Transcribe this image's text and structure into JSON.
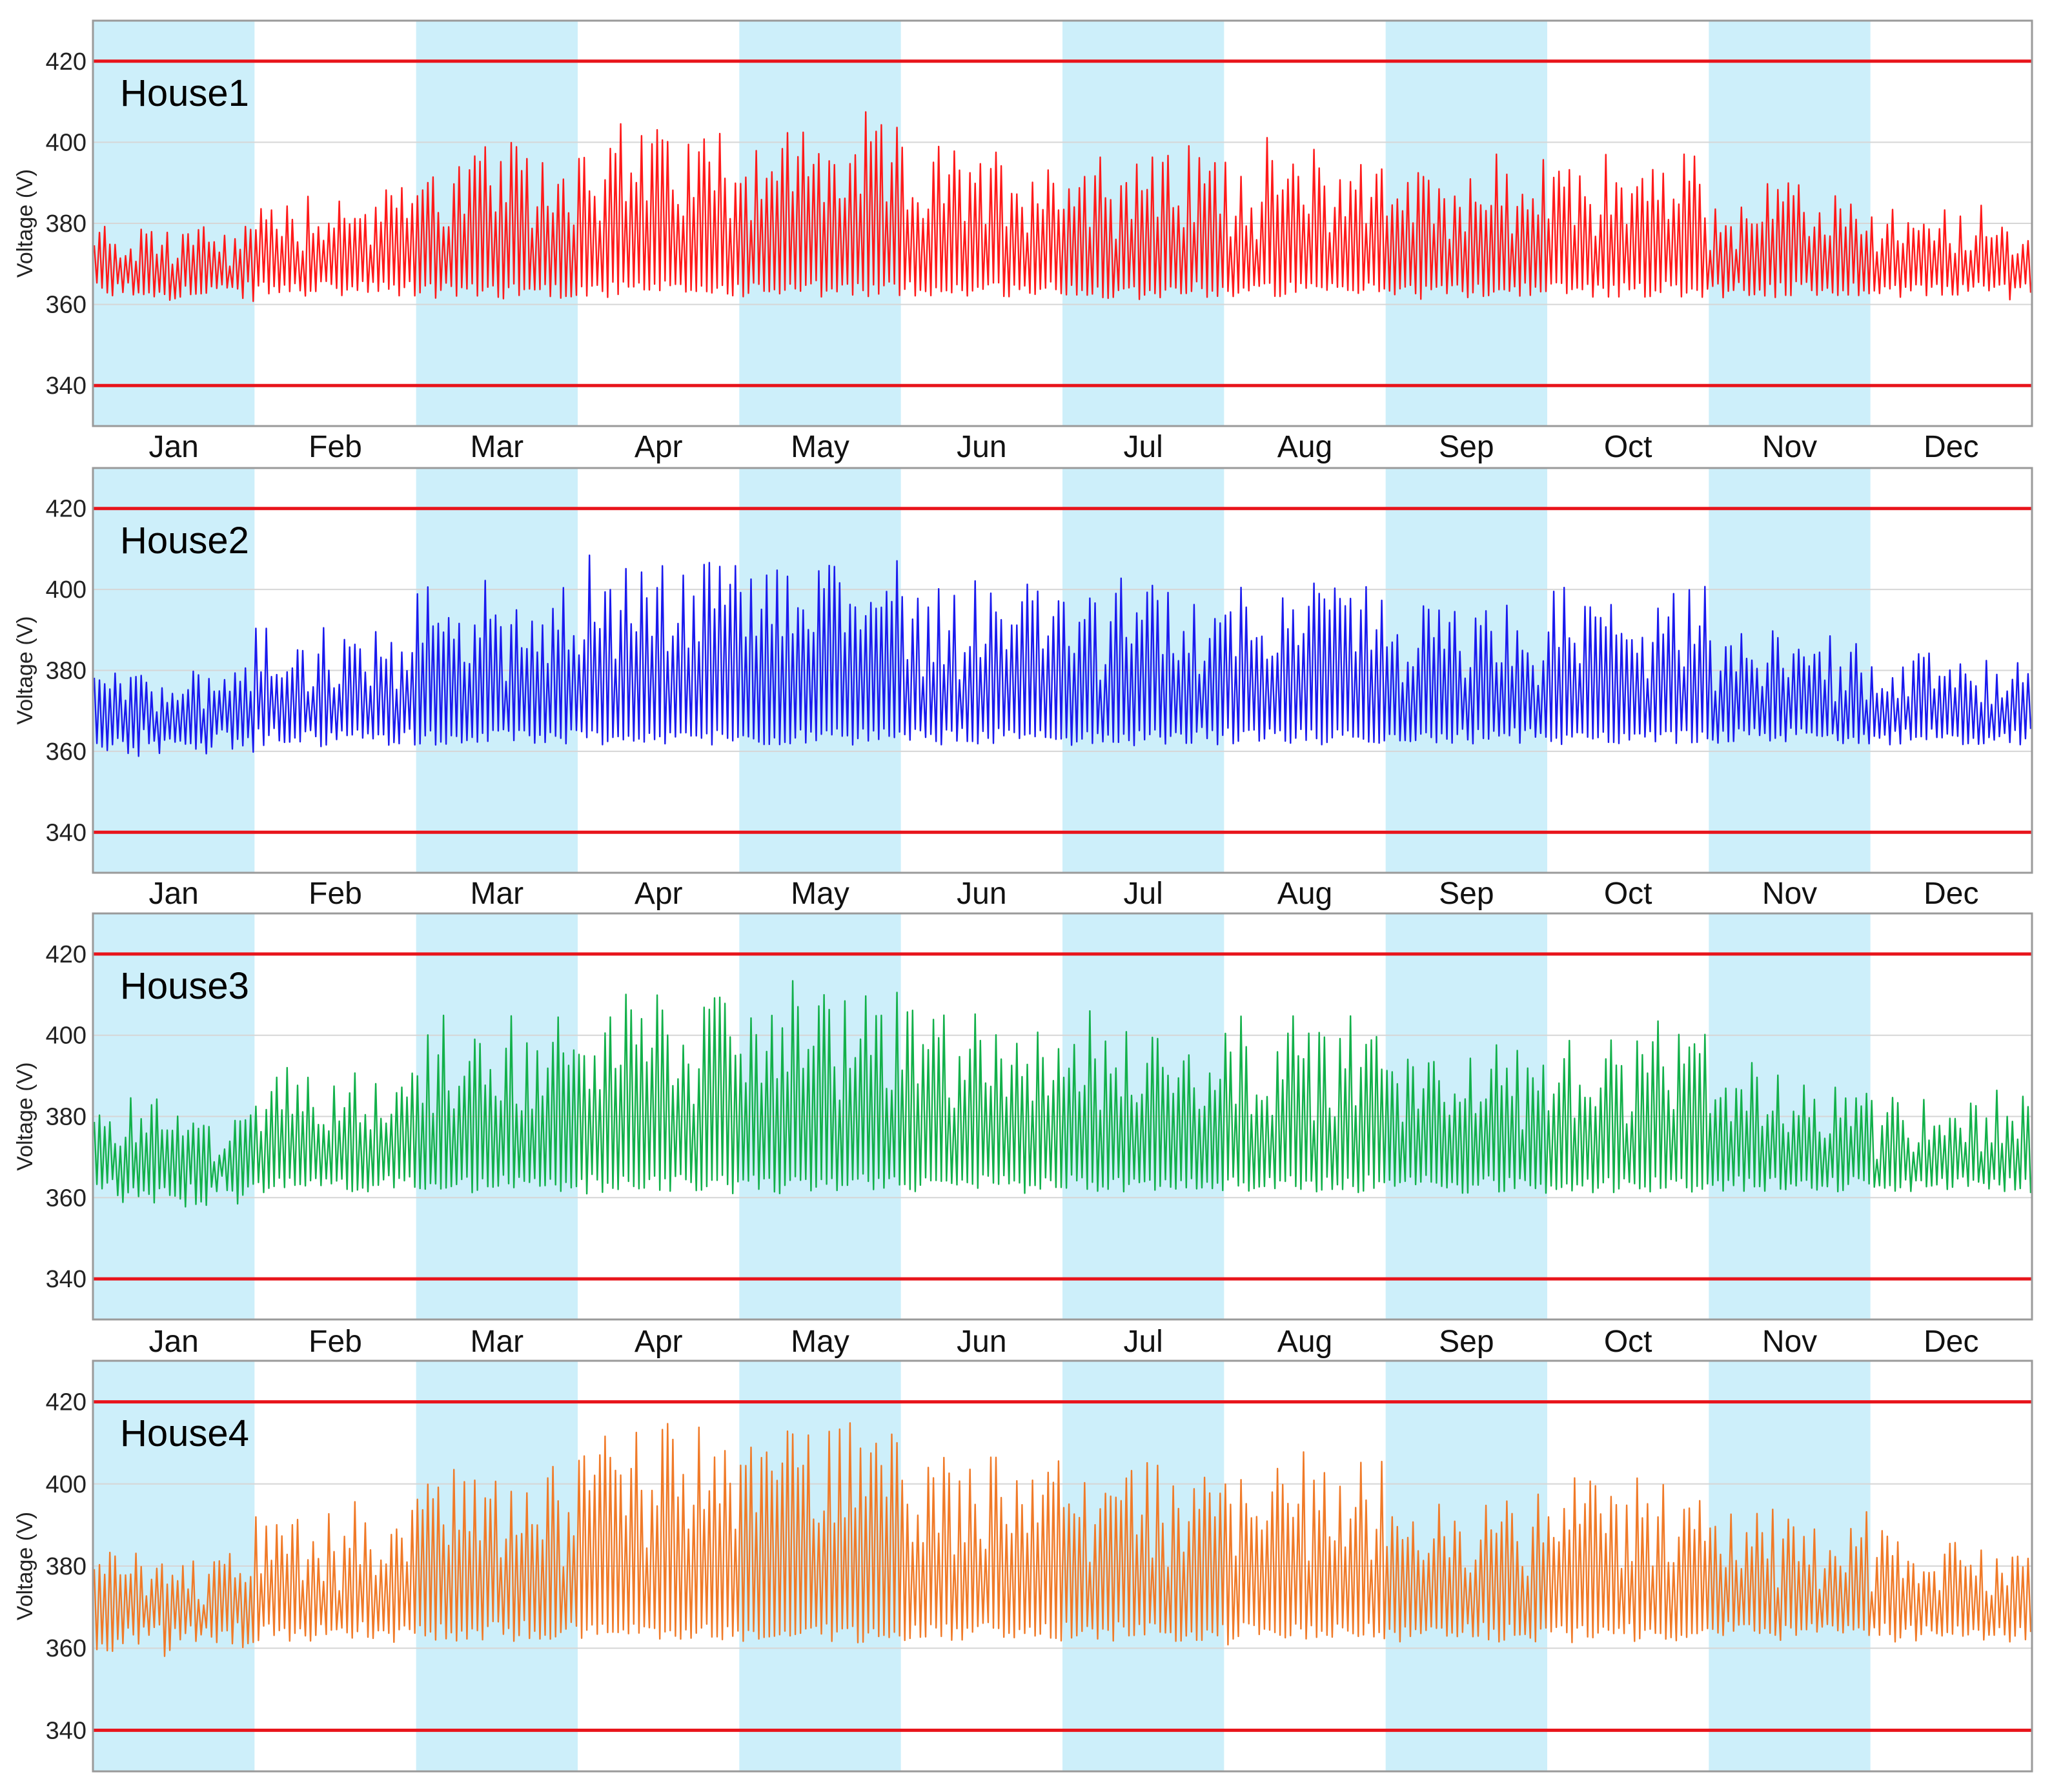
{
  "colors": {
    "band": "#cdeffa",
    "limit": "#e8141b",
    "grid": "#d6d6d6",
    "frame": "#9a9a9a"
  },
  "chart_data": [
    {
      "type": "line",
      "title": "House1",
      "ylabel": "Voltage (V)",
      "ylim": [
        330,
        430
      ],
      "yticks": [
        340,
        360,
        380,
        400,
        420
      ],
      "categories": [
        "Jan",
        "Feb",
        "Mar",
        "Apr",
        "May",
        "Jun",
        "Jul",
        "Aug",
        "Sep",
        "Oct",
        "Nov",
        "Dec"
      ],
      "shaded_months": [
        "Jan",
        "Mar",
        "May",
        "Jul",
        "Sep",
        "Nov"
      ],
      "limit_lines": [
        340,
        420
      ],
      "series": [
        {
          "color": "#ff1a1a",
          "baseline": 362,
          "monthly_peak": [
            377,
            386,
            396,
            402,
            402,
            396,
            396,
            396,
            392,
            394,
            386,
            380
          ],
          "monthly_min": [
            358,
            361,
            360,
            361,
            360,
            361,
            360,
            360,
            360,
            361,
            361,
            360
          ]
        }
      ]
    },
    {
      "type": "line",
      "title": "House2",
      "ylabel": "Voltage (V)",
      "ylim": [
        330,
        430
      ],
      "yticks": [
        340,
        360,
        380,
        400,
        420
      ],
      "categories": [
        "Jan",
        "Feb",
        "Mar",
        "Apr",
        "May",
        "Jun",
        "Jul",
        "Aug",
        "Sep",
        "Oct",
        "Nov",
        "Dec"
      ],
      "shaded_months": [
        "Jan",
        "Mar",
        "May",
        "Jul",
        "Sep",
        "Nov"
      ],
      "limit_lines": [
        340,
        420
      ],
      "series": [
        {
          "color": "#1a1aee",
          "baseline": 362,
          "monthly_peak": [
            379,
            387,
            398,
            405,
            407,
            400,
            398,
            400,
            393,
            396,
            387,
            381
          ],
          "monthly_min": [
            354,
            360,
            360,
            360,
            360,
            360,
            360,
            360,
            360,
            360,
            361,
            360
          ]
        }
      ]
    },
    {
      "type": "line",
      "title": "House3",
      "ylabel": "Voltage (V)",
      "ylim": [
        330,
        430
      ],
      "yticks": [
        340,
        360,
        380,
        400,
        420
      ],
      "categories": [
        "Jan",
        "Feb",
        "Mar",
        "Apr",
        "May",
        "Jun",
        "Jul",
        "Aug",
        "Sep",
        "Oct",
        "Nov",
        "Dec"
      ],
      "shaded_months": [
        "Jan",
        "Mar",
        "May",
        "Jul",
        "Sep",
        "Nov"
      ],
      "limit_lines": [
        340,
        420
      ],
      "series": [
        {
          "color": "#12b04a",
          "baseline": 362,
          "monthly_peak": [
            380,
            389,
            401,
            408,
            411,
            404,
            401,
            402,
            395,
            398,
            388,
            382
          ],
          "monthly_min": [
            351,
            359,
            359,
            359,
            359,
            359,
            359,
            359,
            359,
            359,
            360,
            359
          ]
        }
      ]
    },
    {
      "type": "line",
      "title": "House4",
      "ylabel": "Voltage (V)",
      "ylim": [
        330,
        430
      ],
      "yticks": [
        340,
        360,
        380,
        400,
        420
      ],
      "categories": [
        "Jan",
        "Feb",
        "Mar",
        "Apr",
        "May",
        "Jun",
        "Jul",
        "Aug",
        "Sep",
        "Oct",
        "Nov",
        "Dec"
      ],
      "shaded_months": [
        "Jan",
        "Mar",
        "May",
        "Jul",
        "Sep",
        "Nov"
      ],
      "limit_lines": [
        340,
        420
      ],
      "series": [
        {
          "color": "#f07a28",
          "baseline": 363,
          "monthly_peak": [
            381,
            391,
            403,
            411,
            414,
            407,
            403,
            404,
            397,
            399,
            389,
            383
          ],
          "monthly_min": [
            351,
            358,
            358,
            358,
            358,
            358,
            358,
            358,
            358,
            358,
            359,
            358
          ]
        }
      ]
    }
  ]
}
